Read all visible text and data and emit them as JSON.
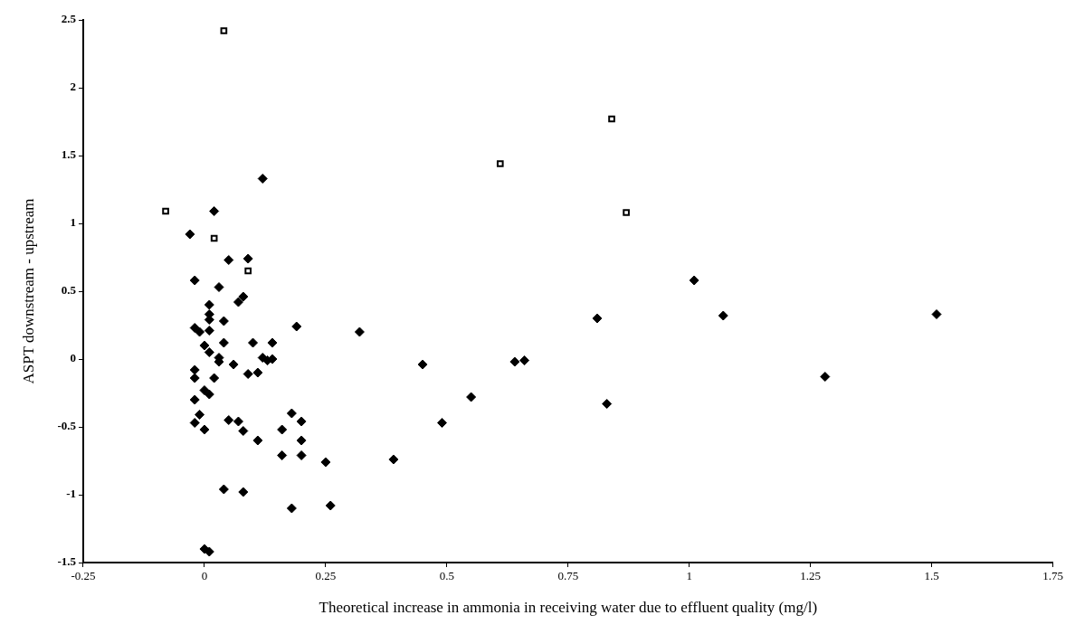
{
  "chart_data": {
    "type": "scatter",
    "xlabel": "Theoretical increase in ammonia in receiving water due to effluent quality (mg/l)",
    "ylabel": "ASPT downstream - upstream",
    "xlim": [
      -0.25,
      1.75
    ],
    "xticks": [
      -0.25,
      0,
      0.25,
      0.5,
      0.75,
      1,
      1.25,
      1.5,
      1.75
    ],
    "ylim": [
      -1.5,
      2.5
    ],
    "yticks": [
      -1.5,
      -1,
      -0.5,
      0,
      0.5,
      1,
      1.5,
      2,
      2.5
    ],
    "grid": false,
    "legend": false,
    "series": [
      {
        "color": "#000000",
        "marker": "square",
        "x": [
          0.04,
          -0.08,
          0.02,
          0.09,
          0.84,
          0.61,
          0.87
        ],
        "values": [
          2.42,
          1.09,
          0.89,
          0.65,
          1.77,
          1.44,
          1.08
        ]
      },
      {
        "color": "#000000",
        "marker": "diamond",
        "x": [
          1.01,
          1.07,
          1.51,
          1.28,
          0.81,
          0.83,
          0.64,
          0.66,
          0.45,
          0.55,
          0.49,
          0.39,
          0.12,
          0.02,
          -0.03,
          0.05,
          0.09,
          -0.02,
          0.03,
          0.08,
          0.07,
          0.01,
          0.01,
          0.01,
          0.04,
          -0.02,
          -0.01,
          0.01,
          0.19,
          0.32,
          0.04,
          0.1,
          0.14,
          0.0,
          0.01,
          0.03,
          0.03,
          0.06,
          0.12,
          0.13,
          0.14,
          0.09,
          0.11,
          -0.02,
          -0.02,
          0.02,
          0.0,
          0.01,
          -0.02,
          -0.01,
          -0.02,
          0.0,
          0.05,
          0.07,
          0.08,
          0.11,
          0.16,
          0.18,
          0.2,
          0.2,
          0.16,
          0.2,
          0.25,
          0.04,
          0.08,
          0.18,
          0.26,
          0.0,
          0.01
        ],
        "values": [
          0.58,
          0.32,
          0.33,
          -0.13,
          0.3,
          -0.33,
          -0.02,
          -0.01,
          -0.04,
          -0.28,
          -0.47,
          -0.74,
          1.33,
          1.09,
          0.92,
          0.73,
          0.74,
          0.58,
          0.53,
          0.46,
          0.42,
          0.4,
          0.33,
          0.29,
          0.28,
          0.23,
          0.2,
          0.21,
          0.24,
          0.2,
          0.12,
          0.12,
          0.12,
          0.1,
          0.05,
          0.01,
          -0.02,
          -0.04,
          0.01,
          -0.01,
          0.0,
          -0.11,
          -0.1,
          -0.08,
          -0.14,
          -0.14,
          -0.23,
          -0.26,
          -0.3,
          -0.41,
          -0.47,
          -0.52,
          -0.45,
          -0.46,
          -0.53,
          -0.6,
          -0.52,
          -0.4,
          -0.46,
          -0.6,
          -0.71,
          -0.71,
          -0.76,
          -0.96,
          -0.98,
          -1.1,
          -1.08,
          -1.4,
          -1.42
        ]
      }
    ]
  }
}
